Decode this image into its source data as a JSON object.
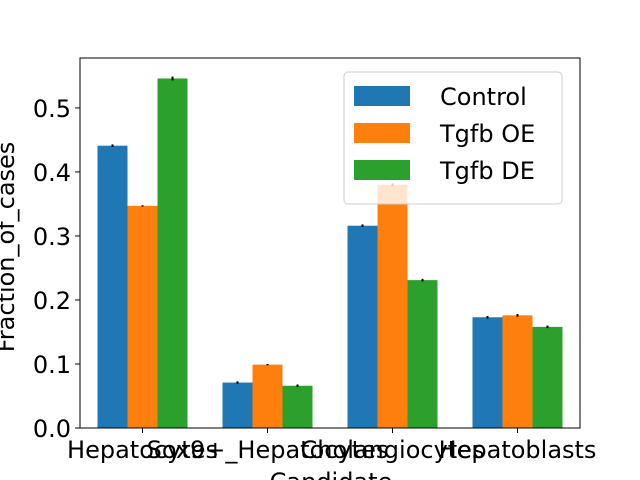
{
  "chart_data": {
    "type": "bar",
    "title": "",
    "xlabel": "Candidate",
    "ylabel": "Fraction_of_cases",
    "categories": [
      "Hepatocytes",
      "Sox9+_Hepatocytes",
      "Cholangiocytes",
      "Hepatoblasts"
    ],
    "series": [
      {
        "name": "Control",
        "color": "#1f77b4",
        "values": [
          0.441,
          0.071,
          0.316,
          0.173
        ],
        "errors": [
          0.002,
          0.002,
          0.002,
          0.002
        ]
      },
      {
        "name": "Tgfb OE",
        "color": "#ff7f0e",
        "values": [
          0.347,
          0.099,
          0.38,
          0.176
        ],
        "errors": [
          0.001,
          0.001,
          0.002,
          0.002
        ]
      },
      {
        "name": "Tgfb DE",
        "color": "#2ca02c",
        "values": [
          0.546,
          0.066,
          0.231,
          0.158
        ],
        "errors": [
          0.003,
          0.002,
          0.002,
          0.002
        ]
      }
    ],
    "ylim": [
      0,
      0.578
    ],
    "yticks": [
      0.0,
      0.1,
      0.2,
      0.3,
      0.4,
      0.5
    ],
    "ytick_labels": [
      "0.0",
      "0.1",
      "0.2",
      "0.3",
      "0.4",
      "0.5"
    ],
    "grid": false,
    "legend_position": "top-right"
  }
}
